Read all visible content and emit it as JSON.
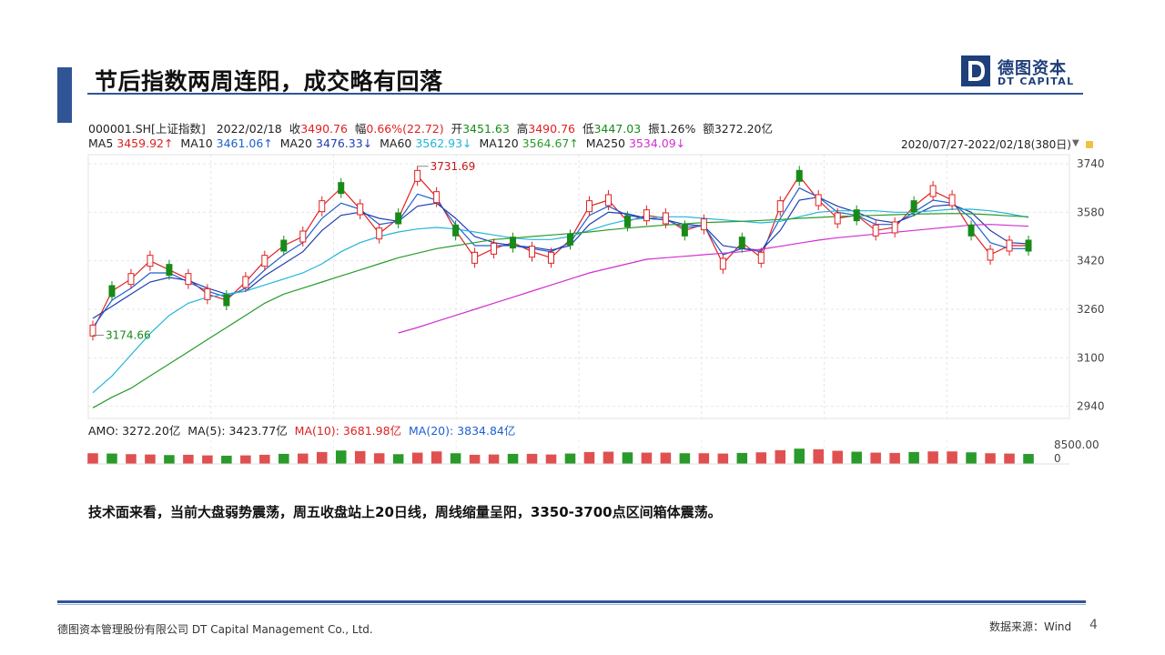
{
  "slide": {
    "title": "节后指数两周连阳，成交略有回落",
    "logo_cn": "德图资本",
    "logo_en": "DT CAPITAL",
    "body_text": "技术面来看，当前大盘弱势震荡，周五收盘站上20日线，周线缩量呈阳，3350-3700点区间箱体震荡。",
    "footer_company": "德图资本管理股份有限公司 DT Capital Management Co., Ltd.",
    "footer_source": "数据来源：Wind",
    "page_number": "4"
  },
  "quote": {
    "code": "000001.SH[上证指数]",
    "date": "2022/02/18",
    "close_label": "收",
    "close": "3490.76",
    "change_label": "幅",
    "change": "0.66%(22.72)",
    "open_label": "开",
    "open": "3451.63",
    "high_label": "高",
    "high": "3490.76",
    "low_label": "低",
    "low": "3447.03",
    "amp_label": "振",
    "amp": "1.26%",
    "amount_label": "额",
    "amount": "3272.20亿"
  },
  "ma_legend": [
    {
      "label": "MA5",
      "value": "3459.92↑",
      "color": "#e02020"
    },
    {
      "label": "MA10",
      "value": "3461.06↑",
      "color": "#1f5fd0"
    },
    {
      "label": "MA20",
      "value": "3476.33↓",
      "color": "#1f3fb0"
    },
    {
      "label": "MA60",
      "value": "3562.93↓",
      "color": "#22b5d8"
    },
    {
      "label": "MA120",
      "value": "3564.67↑",
      "color": "#2a9a2a"
    },
    {
      "label": "MA250",
      "value": "3534.09↓",
      "color": "#d02fd0"
    }
  ],
  "range_label": "2020/07/27-2022/02/18(380日)",
  "volume_legend": {
    "amo": "AMO: 3272.20亿",
    "ma5": "MA(5): 3423.77亿",
    "ma10": "MA(10): 3681.98亿",
    "ma20": "MA(20): 3834.84亿"
  },
  "colors": {
    "accent": "#2f5597",
    "up": "#e02020",
    "down": "#188a18"
  },
  "chart_data": {
    "type": "line",
    "title": "000001.SH[上证指数]",
    "xlabel": "",
    "ylabel": "",
    "x_range": [
      "2020/07/27",
      "2022/02/18"
    ],
    "ylim": [
      2900,
      3770
    ],
    "y_ticks": [
      "3740",
      "3580",
      "3420",
      "3260",
      "3100",
      "2940"
    ],
    "annotations": [
      {
        "text": "3731.69",
        "kind": "high"
      },
      {
        "text": "3174.66",
        "kind": "low"
      }
    ],
    "series": [
      {
        "name": "MA5",
        "color": "#e02020",
        "values": [
          3190,
          3320,
          3360,
          3420,
          3390,
          3360,
          3310,
          3290,
          3350,
          3420,
          3470,
          3500,
          3600,
          3660,
          3590,
          3510,
          3560,
          3700,
          3630,
          3520,
          3430,
          3460,
          3480,
          3450,
          3430,
          3490,
          3600,
          3620,
          3550,
          3570,
          3560,
          3520,
          3540,
          3410,
          3480,
          3430,
          3600,
          3700,
          3620,
          3560,
          3570,
          3520,
          3530,
          3600,
          3650,
          3620,
          3520,
          3440,
          3470,
          3470
        ]
      },
      {
        "name": "MA10",
        "color": "#1f5fd0",
        "values": [
          3200,
          3290,
          3330,
          3380,
          3380,
          3350,
          3320,
          3300,
          3330,
          3390,
          3440,
          3480,
          3560,
          3610,
          3590,
          3540,
          3550,
          3640,
          3620,
          3540,
          3470,
          3470,
          3470,
          3460,
          3450,
          3480,
          3570,
          3600,
          3570,
          3560,
          3555,
          3530,
          3535,
          3440,
          3460,
          3450,
          3560,
          3660,
          3630,
          3580,
          3570,
          3540,
          3540,
          3580,
          3620,
          3610,
          3560,
          3480,
          3460,
          3460
        ]
      },
      {
        "name": "MA20",
        "color": "#1f3fb0",
        "values": [
          3230,
          3270,
          3310,
          3350,
          3365,
          3355,
          3330,
          3310,
          3320,
          3370,
          3410,
          3450,
          3520,
          3570,
          3580,
          3560,
          3550,
          3600,
          3610,
          3560,
          3500,
          3480,
          3470,
          3465,
          3455,
          3470,
          3540,
          3580,
          3575,
          3560,
          3555,
          3540,
          3535,
          3470,
          3460,
          3455,
          3520,
          3620,
          3630,
          3600,
          3580,
          3555,
          3545,
          3570,
          3600,
          3605,
          3580,
          3520,
          3480,
          3476
        ]
      },
      {
        "name": "MA60",
        "color": "#22b5d8",
        "values": [
          2985,
          3040,
          3110,
          3180,
          3240,
          3280,
          3300,
          3310,
          3320,
          3340,
          3360,
          3380,
          3410,
          3450,
          3480,
          3500,
          3515,
          3525,
          3530,
          3525,
          3515,
          3505,
          3495,
          3490,
          3490,
          3500,
          3520,
          3540,
          3555,
          3560,
          3565,
          3565,
          3560,
          3555,
          3550,
          3545,
          3550,
          3565,
          3580,
          3585,
          3585,
          3585,
          3580,
          3580,
          3585,
          3590,
          3590,
          3585,
          3575,
          3563
        ]
      },
      {
        "name": "MA120",
        "color": "#2a9a2a",
        "values": [
          2935,
          2970,
          3000,
          3040,
          3080,
          3120,
          3160,
          3200,
          3240,
          3280,
          3310,
          3330,
          3350,
          3370,
          3390,
          3410,
          3430,
          3445,
          3460,
          3470,
          3480,
          3490,
          3495,
          3500,
          3505,
          3510,
          3515,
          3522,
          3528,
          3533,
          3538,
          3542,
          3546,
          3548,
          3550,
          3553,
          3556,
          3560,
          3563,
          3566,
          3568,
          3570,
          3572,
          3574,
          3575,
          3576,
          3575,
          3572,
          3568,
          3565
        ]
      },
      {
        "name": "MA250",
        "color": "#d02fd0",
        "values": [
          null,
          null,
          null,
          null,
          null,
          null,
          null,
          null,
          null,
          null,
          null,
          null,
          null,
          null,
          null,
          null,
          3182,
          3200,
          3220,
          3240,
          3260,
          3280,
          3300,
          3320,
          3340,
          3360,
          3380,
          3395,
          3410,
          3425,
          3430,
          3435,
          3440,
          3445,
          3450,
          3458,
          3468,
          3478,
          3488,
          3496,
          3502,
          3508,
          3514,
          3520,
          3526,
          3532,
          3538,
          3540,
          3537,
          3534
        ]
      }
    ],
    "volume": {
      "ylim": [
        0,
        8500
      ],
      "y_ticks": [
        "8500.00",
        "0"
      ],
      "values": [
        3500,
        3400,
        3200,
        3100,
        2900,
        3000,
        2800,
        2700,
        2800,
        3000,
        3300,
        3400,
        3900,
        4400,
        4200,
        3500,
        3200,
        3700,
        4100,
        3500,
        3000,
        3100,
        3300,
        3300,
        3100,
        3400,
        3900,
        4000,
        3800,
        3700,
        3700,
        3500,
        3500,
        3400,
        3600,
        3800,
        4500,
        5000,
        4800,
        4300,
        4000,
        3700,
        3600,
        3900,
        4100,
        4100,
        3800,
        3500,
        3400,
        3272
      ]
    }
  }
}
